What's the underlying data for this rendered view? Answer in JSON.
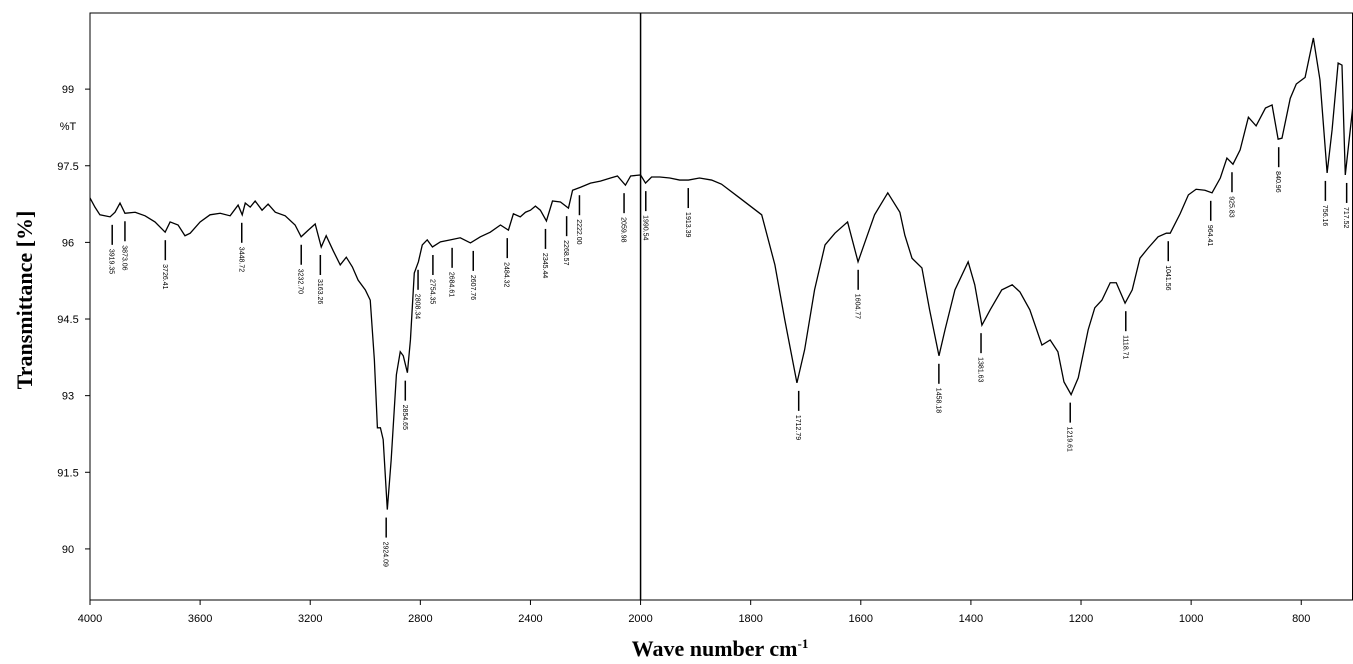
{
  "chart_data": {
    "type": "line",
    "x_label": "Wave number cm",
    "x_label_sup": "-1",
    "y_label": "Transmittance [%]",
    "y_unit_label": "%T",
    "color": "#000000",
    "xlim": [
      4000,
      706
    ],
    "x_break": 2000,
    "xticks": [
      4000,
      3600,
      3200,
      2800,
      2400,
      2000,
      1800,
      1600,
      1400,
      1200,
      1000,
      800
    ],
    "ylim": [
      89,
      100.49
    ],
    "yticks": [
      90,
      91.5,
      93,
      94.5,
      96,
      97.5,
      99
    ],
    "x": [
      4000,
      3982,
      3964,
      3927,
      3909,
      3891,
      3873,
      3836,
      3800,
      3764,
      3727,
      3709,
      3680,
      3655,
      3636,
      3600,
      3564,
      3527,
      3491,
      3462,
      3447,
      3436,
      3418,
      3400,
      3375,
      3353,
      3327,
      3291,
      3255,
      3233,
      3207,
      3182,
      3160,
      3142,
      3116,
      3091,
      3069,
      3047,
      3026,
      3000,
      2982,
      2967,
      2956,
      2945,
      2935,
      2920,
      2906,
      2887,
      2873,
      2862,
      2847,
      2836,
      2822,
      2807,
      2793,
      2775,
      2756,
      2727,
      2691,
      2655,
      2618,
      2582,
      2546,
      2509,
      2480,
      2462,
      2437,
      2418,
      2400,
      2382,
      2364,
      2342,
      2320,
      2291,
      2262,
      2247,
      2218,
      2182,
      2146,
      2109,
      2084,
      2055,
      2036,
      2000,
      1991,
      1980,
      1965,
      1947,
      1929,
      1913,
      1893,
      1871,
      1853,
      1820,
      1780,
      1756,
      1738,
      1716,
      1702,
      1684,
      1665,
      1647,
      1624,
      1605,
      1591,
      1575,
      1551,
      1529,
      1520,
      1507,
      1489,
      1475,
      1458,
      1447,
      1429,
      1405,
      1393,
      1380,
      1365,
      1344,
      1325,
      1311,
      1293,
      1271,
      1256,
      1242,
      1231,
      1218,
      1205,
      1187,
      1175,
      1162,
      1147,
      1136,
      1120,
      1107,
      1093,
      1078,
      1060,
      1045,
      1038,
      1020,
      1005,
      991,
      975,
      962,
      947,
      935,
      924,
      911,
      896,
      882,
      865,
      853,
      842,
      835,
      820,
      809,
      793,
      778,
      766,
      753,
      744,
      733,
      726,
      720,
      706
    ],
    "values": [
      96.87,
      96.69,
      96.54,
      96.5,
      96.59,
      96.77,
      96.57,
      96.59,
      96.52,
      96.4,
      96.2,
      96.4,
      96.34,
      96.13,
      96.18,
      96.4,
      96.54,
      96.57,
      96.52,
      96.73,
      96.54,
      96.77,
      96.69,
      96.81,
      96.63,
      96.75,
      96.59,
      96.52,
      96.34,
      96.11,
      96.24,
      96.36,
      95.91,
      96.13,
      95.83,
      95.56,
      95.71,
      95.52,
      95.26,
      95.07,
      94.87,
      93.7,
      92.37,
      92.37,
      92.14,
      90.77,
      91.74,
      93.41,
      93.86,
      93.78,
      93.45,
      94.09,
      95.4,
      95.62,
      95.95,
      96.05,
      95.91,
      96.01,
      96.05,
      96.09,
      95.99,
      96.11,
      96.2,
      96.34,
      96.24,
      96.56,
      96.5,
      96.59,
      96.63,
      96.71,
      96.63,
      96.42,
      96.81,
      96.79,
      96.67,
      97.02,
      97.08,
      97.16,
      97.2,
      97.26,
      97.3,
      97.12,
      97.3,
      97.32,
      97.16,
      97.28,
      97.28,
      97.26,
      97.22,
      97.22,
      97.26,
      97.22,
      97.14,
      96.87,
      96.54,
      95.56,
      94.48,
      93.25,
      93.9,
      95.07,
      95.95,
      96.18,
      96.4,
      95.62,
      96.05,
      96.54,
      96.97,
      96.59,
      96.14,
      95.69,
      95.5,
      94.68,
      93.78,
      94.29,
      95.07,
      95.62,
      95.17,
      94.38,
      94.68,
      95.07,
      95.17,
      95.03,
      94.68,
      93.99,
      94.09,
      93.86,
      93.27,
      93.02,
      93.35,
      94.29,
      94.72,
      94.87,
      95.21,
      95.21,
      94.81,
      95.07,
      95.69,
      95.89,
      96.11,
      96.18,
      96.18,
      96.56,
      96.93,
      97.04,
      97.02,
      96.97,
      97.26,
      97.65,
      97.53,
      97.81,
      98.45,
      98.28,
      98.63,
      98.69,
      98.02,
      98.04,
      98.82,
      99.1,
      99.23,
      100.0,
      99.18,
      97.36,
      98.2,
      99.51,
      99.47,
      97.32,
      98.69
    ],
    "peaks": [
      {
        "x": 3919.35,
        "y": 96.5
      },
      {
        "x": 3873.06,
        "y": 96.57
      },
      {
        "x": 3726.41,
        "y": 96.2
      },
      {
        "x": 3448.72,
        "y": 96.54
      },
      {
        "x": {
          "value": 3232.7,
          "label": "3232.70"
        },
        "y": 96.11
      },
      {
        "x": 3163.26,
        "y": 95.91
      },
      {
        "x": 2924.09,
        "y": 90.77
      },
      {
        "x": 2854.65,
        "y": 93.45
      },
      {
        "x": 2808.34,
        "y": 95.62
      },
      {
        "x": 2754.35,
        "y": 95.91
      },
      {
        "x": 2684.61,
        "y": 96.05
      },
      {
        "x": 2607.76,
        "y": 95.99
      },
      {
        "x": 2484.32,
        "y": 96.24
      },
      {
        "x": 2345.44,
        "y": 96.42
      },
      {
        "x": 2268.57,
        "y": 96.67
      },
      {
        "x": {
          "value": 2222.0,
          "label": "2222.00"
        },
        "y": 97.08
      },
      {
        "x": 2059.98,
        "y": 97.12
      },
      {
        "x": 1990.54,
        "y": 97.16
      },
      {
        "x": 1913.39,
        "y": 97.22
      },
      {
        "x": 1712.79,
        "y": 93.25
      },
      {
        "x": 1604.77,
        "y": 95.62
      },
      {
        "x": 1458.18,
        "y": 93.78
      },
      {
        "x": 1381.63,
        "y": 94.38
      },
      {
        "x": 1219.61,
        "y": 93.02
      },
      {
        "x": 1118.71,
        "y": 94.81
      },
      {
        "x": 1041.56,
        "y": 96.18
      },
      {
        "x": 964.41,
        "y": 96.97
      },
      {
        "x": 925.83,
        "y": 97.53
      },
      {
        "x": 840.96,
        "y": 98.02
      },
      {
        "x": 756.16,
        "y": 97.36
      },
      {
        "x": 717.52,
        "y": 97.32
      }
    ]
  }
}
